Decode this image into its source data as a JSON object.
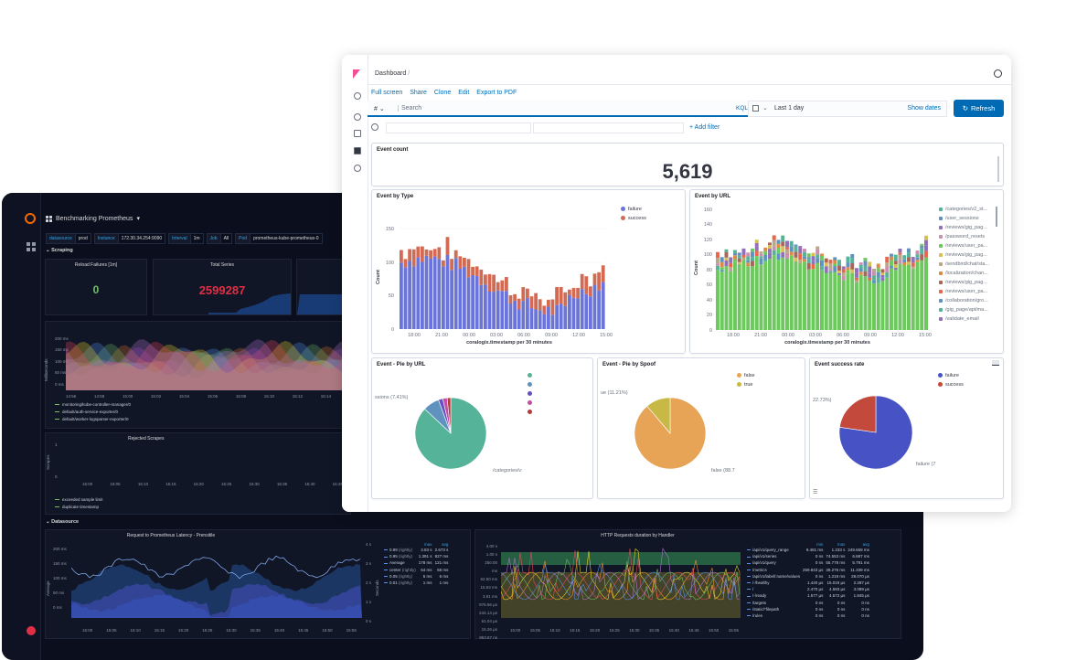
{
  "grafana": {
    "dashboard_title": "Benchmarking Prometheus",
    "variables": [
      {
        "key": "datasource",
        "value": "prod"
      },
      {
        "key": "Instance",
        "value": "172.30.34.254:9090"
      },
      {
        "key": "Interval",
        "value": "1m"
      },
      {
        "key": "Job",
        "value": "All"
      },
      {
        "key": "Pod",
        "value": "prometheus-kube-prometheus-0"
      }
    ],
    "row_scraping": "Scraping",
    "row_datasource": "Datasource",
    "panel_reload_failures": {
      "title": "Reload Failures [1m]",
      "value": "0"
    },
    "panel_total_series": {
      "title": "Total Series",
      "value": "2599287"
    },
    "panel_latency": {
      "y_ticks": [
        "200 ms",
        "150 ms",
        "100 ms",
        "50 ms",
        "0 ms"
      ],
      "y_label": "Milliseconds",
      "x_ticks": [
        "14:56",
        "14:58",
        "15:00",
        "15:02",
        "15:04",
        "15:06",
        "15:08",
        "15:10",
        "15:12",
        "15:14"
      ],
      "legend": [
        "monitoring/kube-controller-manager/0",
        "default/auth-service-exporter/0",
        "default/worker-logsparser-exporter/0"
      ]
    },
    "panel_rejected": {
      "title": "Rejected Scrapes",
      "y_ticks": [
        "1",
        "0"
      ],
      "y_label": "Scrapes",
      "x_ticks": [
        "15:00",
        "15:05",
        "15:10",
        "15:15",
        "15:20",
        "15:25",
        "15:30",
        "15:35",
        "15:40",
        "15:45"
      ],
      "legend": [
        "exceeded sample limit",
        "duplicate timestamp"
      ]
    },
    "panel_request_latency": {
      "title": "Request to Prometheus Latency - Prensitile",
      "y_ticks": [
        "200 ms",
        "150 ms",
        "100 ms",
        "50 ms",
        "0 ms"
      ],
      "y_label": "Average",
      "y2_ticks": [
        "4 s",
        "3 s",
        "2 s",
        "1 s",
        "0 s"
      ],
      "y2_label": "Seconds",
      "x_ticks": [
        "15:00",
        "15:05",
        "15:10",
        "15:15",
        "15:20",
        "15:25",
        "15:30",
        "15:35",
        "15:40",
        "15:45",
        "15:50",
        "15:55"
      ],
      "legend_headers": [
        "max",
        "avg"
      ],
      "legend": [
        {
          "name": "0.99",
          "suffix": "(rightly)",
          "max": "3.83 s",
          "avg": "2.673 s"
        },
        {
          "name": "0.95",
          "suffix": "(rightly)",
          "max": "1.391 s",
          "avg": "827 ms"
        },
        {
          "name": "Average",
          "suffix": "",
          "max": "178 ms",
          "avg": "121 ms"
        },
        {
          "name": "center",
          "suffix": "(rightly)",
          "max": "64 ms",
          "avg": "58 ms"
        },
        {
          "name": "0.05",
          "suffix": "(rightly)",
          "max": "5 ms",
          "avg": "6 ms"
        },
        {
          "name": "0.01",
          "suffix": "(rightly)",
          "max": "1 ms",
          "avg": "1 ms"
        }
      ]
    },
    "panel_http": {
      "title": "HTTP Requests duration by Handler",
      "y_ticks": [
        "4.00 s",
        "1.00 s",
        "250.00 ms",
        "62.50 ms",
        "15.63 ms",
        "3.91 ms",
        "976.56 µs",
        "244.14 µs",
        "61.04 µs",
        "15.26 µs",
        "953.67 ns"
      ],
      "x_ticks": [
        "15:00",
        "15:05",
        "15:10",
        "15:15",
        "15:20",
        "15:25",
        "15:30",
        "15:35",
        "15:40",
        "15:45",
        "15:50",
        "15:55"
      ],
      "legend_headers": [
        "min",
        "max",
        "avg"
      ],
      "legend": [
        {
          "name": "/api/v1/query_range",
          "min": "9.481 ms",
          "max": "1.233 s",
          "avg": "249.659 ms"
        },
        {
          "name": "/api/v1/series",
          "min": "0 ns",
          "max": "74.553 ms",
          "avg": "6.687 ms"
        },
        {
          "name": "/api/v1/query",
          "min": "0 ns",
          "max": "55.778 ms",
          "avg": "5.791 ms"
        },
        {
          "name": "/metrics",
          "min": "259.843 µs",
          "max": "39.276 ms",
          "avg": "11.339 ms"
        },
        {
          "name": "/api/v1/label/:name/values",
          "min": "0 ns",
          "max": "1.219 ms",
          "avg": "28.070 µs"
        },
        {
          "name": "/-/healthy",
          "min": "1.440 µs",
          "max": "15.019 µs",
          "avg": "2.287 µs"
        },
        {
          "name": "/",
          "min": "2.470 µs",
          "max": "4.583 µs",
          "avg": "3.089 µs"
        },
        {
          "name": "/-/ready",
          "min": "1.577 µs",
          "max": "4.572 µs",
          "avg": "1.845 µs"
        },
        {
          "name": "/targets",
          "min": "0 ns",
          "max": "0 ns",
          "avg": "0 ns"
        },
        {
          "name": "/static/*filepath",
          "min": "0 ns",
          "max": "0 ns",
          "avg": "0 ns"
        },
        {
          "name": "/rules",
          "min": "0 ns",
          "max": "0 ns",
          "avg": "0 ns"
        }
      ]
    }
  },
  "kibana": {
    "breadcrumb": "Dashboard",
    "breadcrumb_sep": "/",
    "top_links": [
      "Full screen",
      "Share",
      "Clone",
      "Edit",
      "Export to PDF"
    ],
    "query_prefix": "#",
    "search_placeholder": "Search",
    "kql_label": "KQL",
    "date_range": "Last 1 day",
    "show_dates": "Show dates",
    "refresh_label": "Refresh",
    "add_filter": "+ Add filter",
    "event_count": {
      "title": "Event count",
      "value": "5,619"
    },
    "event_by_type": {
      "title": "Event by Type",
      "x_label": "coralogix.timestamp per 30 minutes",
      "y_label": "Count",
      "y_ticks": [
        "150",
        "100",
        "50",
        "0"
      ],
      "x_ticks": [
        "18:00",
        "21:00",
        "00:00",
        "03:00",
        "06:00",
        "09:00",
        "12:00",
        "15:00"
      ],
      "legend": [
        {
          "name": "failure",
          "color": "#6a74d9"
        },
        {
          "name": "success",
          "color": "#d36b54"
        }
      ]
    },
    "event_by_url": {
      "title": "Event by URL",
      "x_label": "coralogix.timestamp per 30 minutes",
      "y_label": "Count",
      "y_ticks": [
        "160",
        "140",
        "120",
        "100",
        "80",
        "60",
        "40",
        "20",
        "0"
      ],
      "x_ticks": [
        "18:00",
        "21:00",
        "00:00",
        "03:00",
        "06:00",
        "09:00",
        "12:00",
        "15:00"
      ],
      "legend": [
        {
          "name": "/categories/v2_st...",
          "color": "#54b399"
        },
        {
          "name": "/user_sessions",
          "color": "#6092c0"
        },
        {
          "name": "/reviews/gig_pag...",
          "color": "#9170b8"
        },
        {
          "name": "/password_resets",
          "color": "#ca8eae"
        },
        {
          "name": "/reviews/user_pa...",
          "color": "#6dc85e"
        },
        {
          "name": "/reviews/gig_pag...",
          "color": "#d6bf57"
        },
        {
          "name": "/sendbird/chat/sta...",
          "color": "#b9a888"
        },
        {
          "name": "/localization/chan...",
          "color": "#da8b45"
        },
        {
          "name": "/reviews/gig_pag...",
          "color": "#aa6556"
        },
        {
          "name": "/reviews/user_pa...",
          "color": "#e7664c"
        },
        {
          "name": "/collaboration/gro...",
          "color": "#6092c0"
        },
        {
          "name": "/gig_page/api/ma...",
          "color": "#54b399"
        },
        {
          "name": "/validate_email",
          "color": "#9170b8"
        }
      ]
    },
    "pie_by_url": {
      "title": "Event - Pie by URL",
      "label_left": "ssions (7.41%)",
      "label_right": "/categories/v:"
    },
    "pie_by_spoof": {
      "title": "Event - Pie by Spoof",
      "label_left": "ue (11.21%)",
      "label_right": "false (88.7",
      "legend": [
        {
          "name": "false",
          "color": "#e7a356"
        },
        {
          "name": "true",
          "color": "#c8b946"
        }
      ]
    },
    "success_rate": {
      "title": "Event success rate",
      "label_left": "22.73%)",
      "label_right": "failure (7",
      "legend": [
        {
          "name": "failure",
          "color": "#4752c4"
        },
        {
          "name": "success",
          "color": "#c2493b"
        }
      ]
    }
  }
}
